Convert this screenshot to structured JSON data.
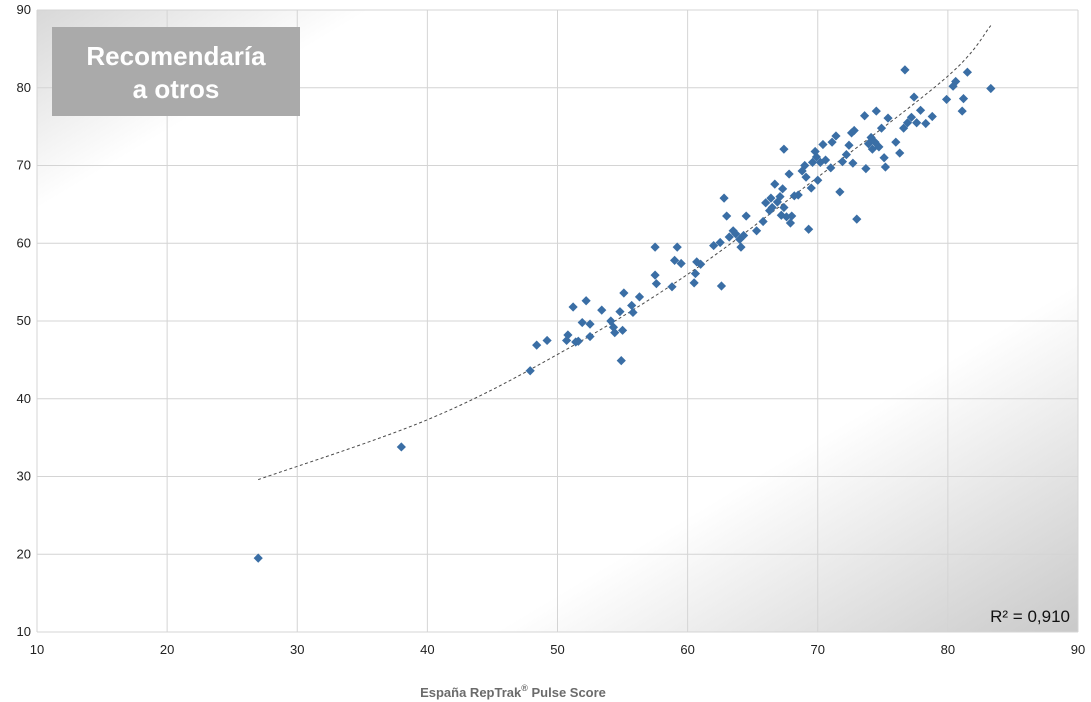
{
  "chart_data": {
    "type": "scatter",
    "title_lines": [
      "Recomendaría",
      "a otros"
    ],
    "xlabel": "España RepTrak",
    "xlabel_sup": "®",
    "xlabel_suffix": " Pulse Score",
    "ylabel": "",
    "xlim": [
      10,
      90
    ],
    "ylim": [
      10,
      90
    ],
    "x_ticks": [
      10,
      20,
      30,
      40,
      50,
      60,
      70,
      80,
      90
    ],
    "y_ticks": [
      10,
      20,
      30,
      40,
      50,
      60,
      70,
      80,
      90
    ],
    "grid": true,
    "annotation": "R² = 0,910",
    "trendline": {
      "type": "curve",
      "x_range": [
        27.0,
        83.3
      ],
      "points": [
        [
          27.0,
          29.6
        ],
        [
          40,
          37.3
        ],
        [
          50,
          45.7
        ],
        [
          60,
          56.0
        ],
        [
          70,
          68.5
        ],
        [
          80,
          81.5
        ],
        [
          83.3,
          88.0
        ]
      ]
    },
    "colors": {
      "marker": "#3a6ea5",
      "title_box": "#aaaaaa",
      "trend": "#4a4a4a"
    },
    "x": [
      27.0,
      38.0,
      47.9,
      48.4,
      49.2,
      50.7,
      50.8,
      51.2,
      51.4,
      51.6,
      51.9,
      52.2,
      52.5,
      52.5,
      53.4,
      54.1,
      54.3,
      54.4,
      54.8,
      54.9,
      55.0,
      55.1,
      55.7,
      55.8,
      56.3,
      57.5,
      57.5,
      57.6,
      58.8,
      59.0,
      59.2,
      59.5,
      60.5,
      60.6,
      60.7,
      61.0,
      62.0,
      62.5,
      62.8,
      63.0,
      63.2,
      63.5,
      63.7,
      64.0,
      64.1,
      64.3,
      64.5,
      65.3,
      65.8,
      66.0,
      66.3,
      66.4,
      66.5,
      66.7,
      66.9,
      67.1,
      67.2,
      67.3,
      67.4,
      67.6,
      67.8,
      67.9,
      68.2,
      68.5,
      68.8,
      69.0,
      69.1,
      69.3,
      69.5,
      69.6,
      69.9,
      70.0,
      70.2,
      70.4,
      70.6,
      71.0,
      71.1,
      71.4,
      71.7,
      71.9,
      72.2,
      72.4,
      72.6,
      72.7,
      73.0,
      73.7,
      73.9,
      74.1,
      74.2,
      74.4,
      74.5,
      74.7,
      74.9,
      75.1,
      75.2,
      75.4,
      76.0,
      76.3,
      76.6,
      76.9,
      77.2,
      77.4,
      77.6,
      77.9,
      78.3,
      78.8,
      79.9,
      80.4,
      80.6,
      81.1,
      81.2,
      81.5,
      83.3,
      72.8,
      67.4,
      68.0,
      69.8,
      76.7,
      62.6,
      73.6
    ],
    "y": [
      19.5,
      33.8,
      43.6,
      46.9,
      47.5,
      47.5,
      48.2,
      51.8,
      47.3,
      47.4,
      49.8,
      52.6,
      49.6,
      48.0,
      51.4,
      50.0,
      49.2,
      48.5,
      51.2,
      44.9,
      48.8,
      53.6,
      52.0,
      51.1,
      53.1,
      59.5,
      55.9,
      54.8,
      54.4,
      57.8,
      59.5,
      57.4,
      54.9,
      56.1,
      57.6,
      57.3,
      59.7,
      60.1,
      65.8,
      63.5,
      60.8,
      61.6,
      61.2,
      60.5,
      59.5,
      61.0,
      63.5,
      61.6,
      62.8,
      65.2,
      64.2,
      65.8,
      64.6,
      67.6,
      65.3,
      66.0,
      63.6,
      67.0,
      72.1,
      63.4,
      68.9,
      62.6,
      66.1,
      66.2,
      69.3,
      70.0,
      68.5,
      61.8,
      67.1,
      70.4,
      71.1,
      68.1,
      70.4,
      72.7,
      70.7,
      69.7,
      73.0,
      73.8,
      66.6,
      70.5,
      71.4,
      72.6,
      74.2,
      70.3,
      63.1,
      69.6,
      72.8,
      73.6,
      72.1,
      73.0,
      77.0,
      72.4,
      74.8,
      71.0,
      69.8,
      76.1,
      73.0,
      71.6,
      74.8,
      75.5,
      76.2,
      78.8,
      75.5,
      77.1,
      75.4,
      76.3,
      78.5,
      80.2,
      80.8,
      77.0,
      78.6,
      82.0,
      79.9,
      74.5,
      64.6,
      63.5,
      71.8,
      82.3,
      54.5,
      76.4
    ]
  }
}
